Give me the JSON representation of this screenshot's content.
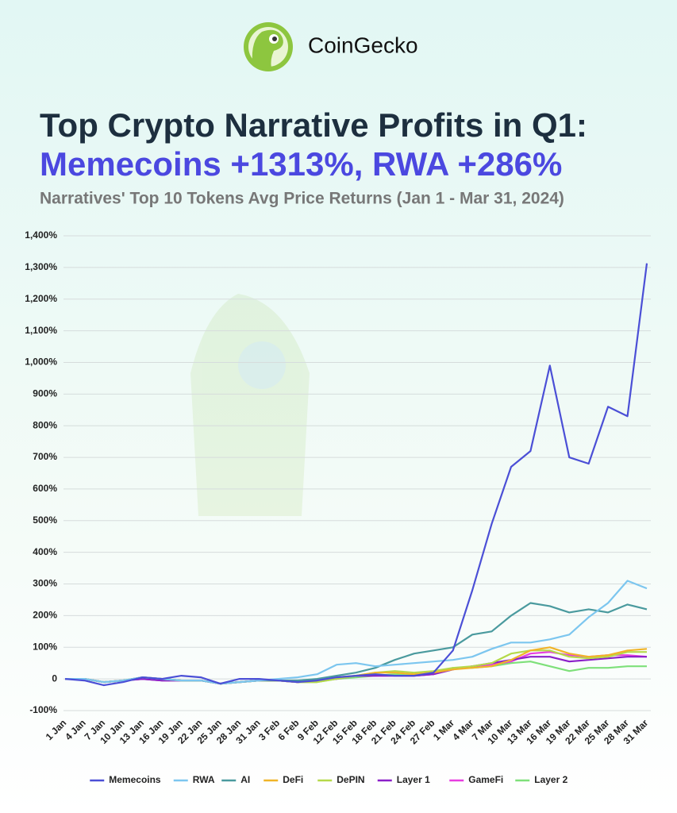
{
  "brand": "CoinGecko",
  "chart_data": {
    "type": "line",
    "title": "Top Crypto Narrative Profits in Q1:",
    "headline": "Memecoins +1313%, RWA +286%",
    "subtitle": "Narratives' Top 10 Tokens Avg Price Returns (Jan 1 - Mar 31, 2024)",
    "categories": [
      "1 Jan",
      "4 Jan",
      "7 Jan",
      "10 Jan",
      "13 Jan",
      "16 Jan",
      "19 Jan",
      "22 Jan",
      "25 Jan",
      "28 Jan",
      "31 Jan",
      "3 Feb",
      "6 Feb",
      "9 Feb",
      "12 Feb",
      "15 Feb",
      "18 Feb",
      "21 Feb",
      "24 Feb",
      "27 Feb",
      "1 Mar",
      "4 Mar",
      "7 Mar",
      "10 Mar",
      "13 Mar",
      "16 Mar",
      "19 Mar",
      "22 Mar",
      "25 Mar",
      "28 Mar",
      "31 Mar"
    ],
    "ylim": [
      -100,
      1400
    ],
    "yticks": [
      {
        "value": -100,
        "label": "-100%"
      },
      0,
      {
        "value": 100,
        "label": "100%"
      },
      {
        "value": 200,
        "label": "200%"
      },
      {
        "value": 300,
        "label": "300%"
      },
      {
        "value": 400,
        "label": "400%"
      },
      {
        "value": 500,
        "label": "500%"
      },
      {
        "value": 600,
        "label": "600%"
      },
      {
        "value": 700,
        "label": "700%"
      },
      {
        "value": 800,
        "label": "800%"
      },
      {
        "value": 900,
        "label": "900%"
      },
      {
        "value": 1000,
        "label": "1,000%"
      },
      {
        "value": 1100,
        "label": "1,100%"
      },
      {
        "value": 1200,
        "label": "1,200%"
      },
      {
        "value": 1300,
        "label": "1,300%"
      },
      {
        "value": 1400,
        "label": "1,400%"
      }
    ],
    "grid": true,
    "legend": "bottom",
    "series": [
      {
        "name": "Memecoins",
        "color": "#4b4fd6",
        "values": [
          0,
          -5,
          -20,
          -10,
          5,
          0,
          10,
          5,
          -15,
          0,
          0,
          -5,
          -10,
          -5,
          5,
          10,
          15,
          10,
          10,
          20,
          90,
          280,
          490,
          670,
          720,
          990,
          700,
          680,
          860,
          830,
          1313
        ]
      },
      {
        "name": "RWA",
        "color": "#7cc6ef",
        "values": [
          0,
          0,
          -10,
          -5,
          5,
          0,
          -5,
          -5,
          -15,
          -10,
          -5,
          0,
          5,
          15,
          45,
          50,
          40,
          45,
          50,
          55,
          60,
          70,
          95,
          115,
          115,
          125,
          140,
          195,
          240,
          310,
          286
        ]
      },
      {
        "name": "AI",
        "color": "#4a9a9e",
        "values": [
          0,
          0,
          -10,
          -5,
          5,
          0,
          -5,
          -5,
          -15,
          -10,
          -5,
          -5,
          -5,
          0,
          10,
          20,
          35,
          60,
          80,
          90,
          100,
          140,
          150,
          200,
          240,
          230,
          210,
          220,
          210,
          235,
          220
        ]
      },
      {
        "name": "DeFi",
        "color": "#f0b428",
        "values": [
          0,
          0,
          -10,
          -5,
          5,
          0,
          -5,
          -5,
          -15,
          -10,
          -5,
          -5,
          -10,
          -5,
          5,
          10,
          20,
          20,
          15,
          20,
          30,
          35,
          40,
          60,
          90,
          100,
          80,
          70,
          75,
          90,
          95
        ]
      },
      {
        "name": "DePIN",
        "color": "#b5d94a",
        "values": [
          0,
          0,
          -10,
          -5,
          5,
          0,
          -5,
          -5,
          -15,
          -10,
          -5,
          -5,
          -10,
          -10,
          0,
          10,
          20,
          25,
          20,
          25,
          35,
          40,
          50,
          80,
          90,
          90,
          70,
          65,
          70,
          85,
          85
        ]
      },
      {
        "name": "Layer 1",
        "color": "#8a1fc9",
        "values": [
          0,
          0,
          -10,
          -5,
          0,
          -5,
          -5,
          -5,
          -15,
          -10,
          -5,
          -5,
          -10,
          -5,
          0,
          10,
          10,
          10,
          10,
          15,
          30,
          40,
          50,
          60,
          70,
          70,
          55,
          60,
          65,
          70,
          70
        ]
      },
      {
        "name": "GameFi",
        "color": "#e83ee0",
        "values": [
          0,
          0,
          -10,
          -5,
          0,
          -5,
          -5,
          -5,
          -15,
          -10,
          -5,
          -5,
          -10,
          -5,
          0,
          10,
          10,
          10,
          10,
          15,
          30,
          40,
          45,
          55,
          80,
          85,
          75,
          70,
          75,
          75,
          70
        ]
      },
      {
        "name": "Layer 2",
        "color": "#7ee07a",
        "values": [
          0,
          0,
          -10,
          -5,
          0,
          -5,
          -5,
          -5,
          -15,
          -10,
          -5,
          -5,
          -10,
          -10,
          0,
          5,
          10,
          15,
          10,
          15,
          35,
          35,
          40,
          50,
          55,
          40,
          25,
          35,
          35,
          40,
          40
        ]
      }
    ]
  }
}
